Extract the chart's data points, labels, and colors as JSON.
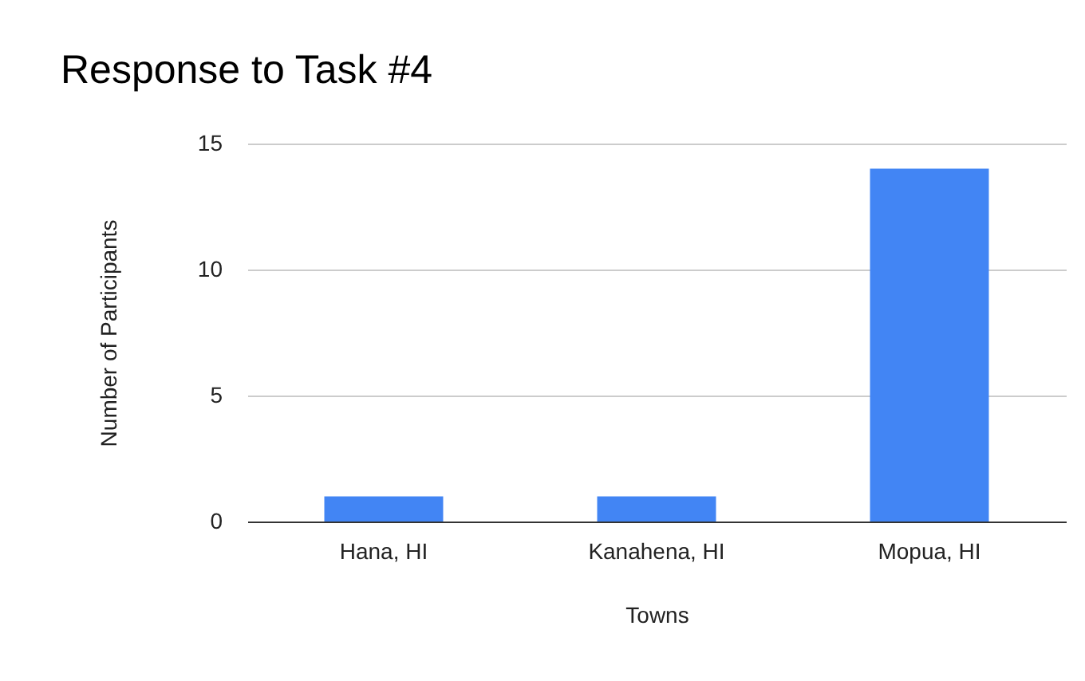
{
  "chart_data": {
    "type": "bar",
    "title": "Response to Task #4",
    "xlabel": "Towns",
    "ylabel": "Number of Participants",
    "categories": [
      "Hana, HI",
      "Kanahena, HI",
      "Mopua, HI"
    ],
    "values": [
      1,
      1,
      14
    ],
    "color": "#4285f4",
    "ylim": [
      0,
      15
    ],
    "yticks": [
      0,
      5,
      10,
      15
    ],
    "grid": "y"
  }
}
